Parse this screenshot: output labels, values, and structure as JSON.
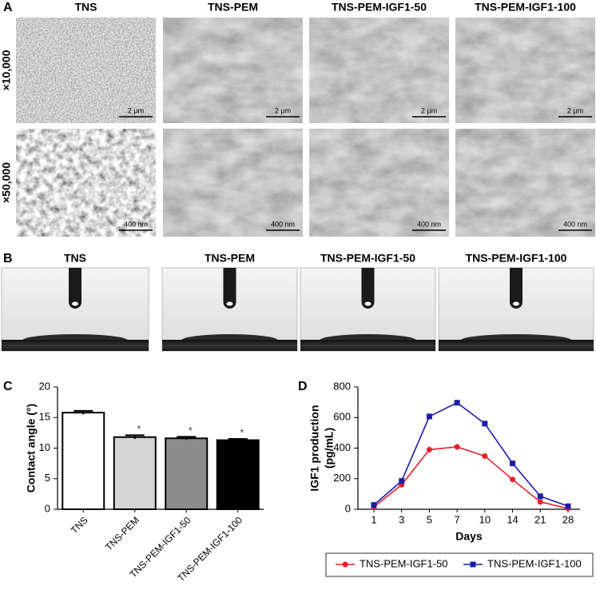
{
  "panel_a": {
    "letter": "A",
    "columns": [
      "TNS",
      "TNS-PEM",
      "TNS-PEM-IGF1-50",
      "TNS-PEM-IGF1-100"
    ],
    "rows": [
      "×10,000",
      "×50,000"
    ],
    "scale_bars": [
      "2 µm",
      "400 nm"
    ]
  },
  "panel_b": {
    "letter": "B",
    "columns": [
      "TNS",
      "TNS-PEM",
      "TNS-PEM-IGF1-50",
      "TNS-PEM-IGF1-100"
    ]
  },
  "chart_data": [
    {
      "panel": "C",
      "type": "bar",
      "ylabel": "Contact angle (°)",
      "categories": [
        "TNS",
        "TNS-PEM",
        "TNS-PEM-IGF1-50",
        "TNS-PEM-IGF1-100"
      ],
      "values": [
        15.8,
        11.8,
        11.6,
        11.3
      ],
      "errors": [
        0.3,
        0.3,
        0.25,
        0.2
      ],
      "colors": [
        "#ffffff",
        "#d4d4d4",
        "#8c8c8c",
        "#000000"
      ],
      "significance": [
        null,
        "*",
        "*",
        "*"
      ],
      "ylim": [
        0,
        20
      ],
      "yticks": [
        0,
        5,
        10,
        15,
        20
      ]
    },
    {
      "panel": "D",
      "type": "line",
      "ylabel_lines": [
        "IGF1 production",
        "(pg/mL)"
      ],
      "xlabel": "Days",
      "categories": [
        "1",
        "3",
        "5",
        "7",
        "10",
        "14",
        "21",
        "28"
      ],
      "series": [
        {
          "name": "TNS-PEM-IGF1-50",
          "color": "#e8202a",
          "marker": "circle",
          "values": [
            15,
            160,
            390,
            408,
            348,
            195,
            48,
            5
          ]
        },
        {
          "name": "TNS-PEM-IGF1-100",
          "color": "#1c1ca8",
          "marker": "square",
          "values": [
            28,
            185,
            607,
            697,
            560,
            300,
            85,
            20
          ]
        }
      ],
      "ylim": [
        0,
        800
      ],
      "yticks": [
        0,
        200,
        400,
        600,
        800
      ]
    }
  ]
}
